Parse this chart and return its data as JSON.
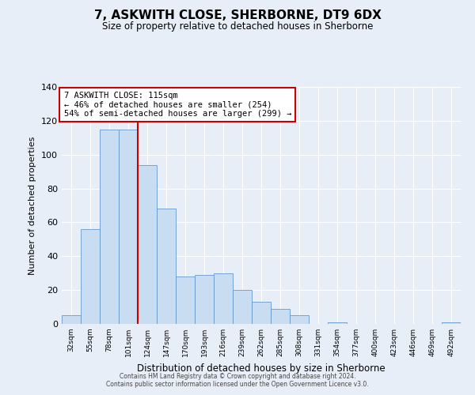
{
  "title": "7, ASKWITH CLOSE, SHERBORNE, DT9 6DX",
  "subtitle": "Size of property relative to detached houses in Sherborne",
  "xlabel": "Distribution of detached houses by size in Sherborne",
  "ylabel": "Number of detached properties",
  "bar_labels": [
    "32sqm",
    "55sqm",
    "78sqm",
    "101sqm",
    "124sqm",
    "147sqm",
    "170sqm",
    "193sqm",
    "216sqm",
    "239sqm",
    "262sqm",
    "285sqm",
    "308sqm",
    "331sqm",
    "354sqm",
    "377sqm",
    "400sqm",
    "423sqm",
    "446sqm",
    "469sqm",
    "492sqm"
  ],
  "bar_heights": [
    5,
    56,
    115,
    115,
    94,
    68,
    28,
    29,
    30,
    20,
    13,
    9,
    5,
    0,
    1,
    0,
    0,
    0,
    0,
    0,
    1
  ],
  "bar_color": "#c9ddf2",
  "bar_edge_color": "#6699cc",
  "vline_x_index": 3.5,
  "vline_color": "#cc0000",
  "annotation_text": "7 ASKWITH CLOSE: 115sqm\n← 46% of detached houses are smaller (254)\n54% of semi-detached houses are larger (299) →",
  "annotation_box_facecolor": "#ffffff",
  "annotation_box_edgecolor": "#cc0000",
  "ylim": [
    0,
    140
  ],
  "yticks": [
    0,
    20,
    40,
    60,
    80,
    100,
    120,
    140
  ],
  "background_color": "#e8eef8",
  "plot_bg_color": "#e8eef8",
  "grid_color": "#ffffff",
  "footer_line1": "Contains HM Land Registry data © Crown copyright and database right 2024.",
  "footer_line2": "Contains public sector information licensed under the Open Government Licence v3.0."
}
